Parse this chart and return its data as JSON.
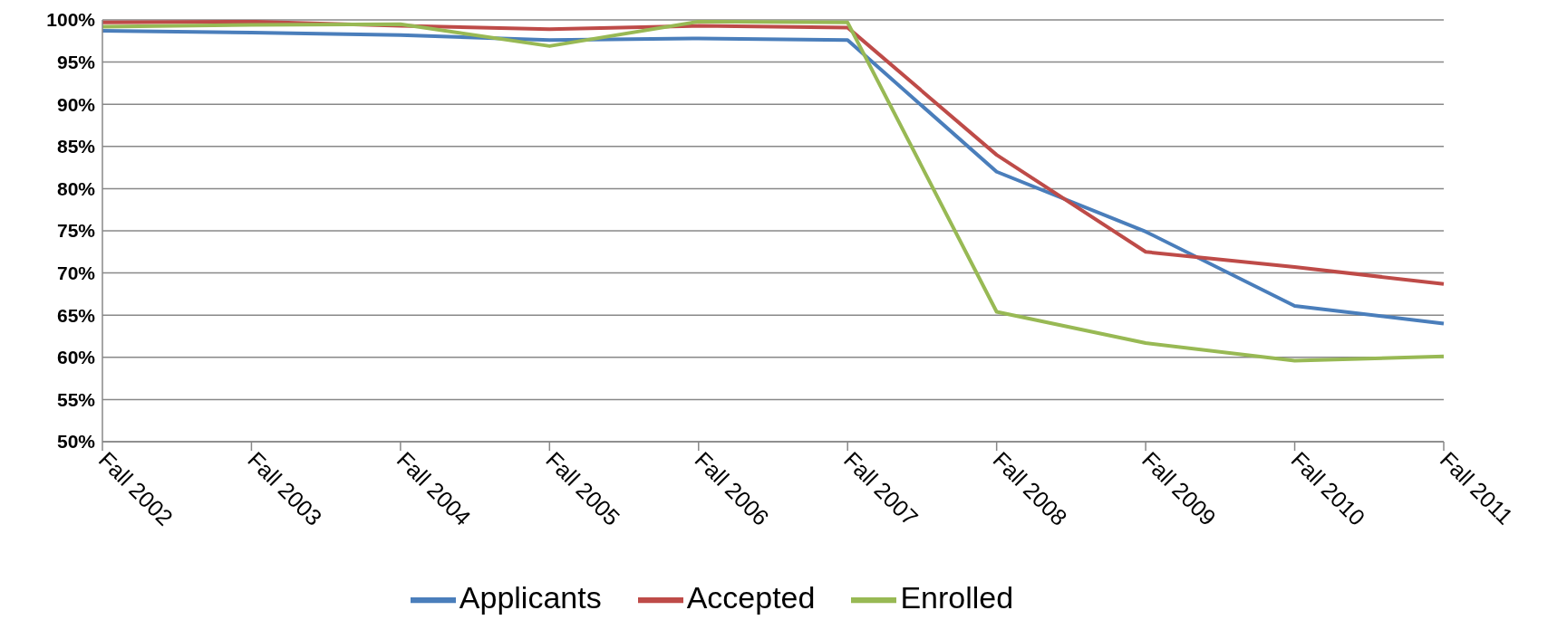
{
  "chart_data": {
    "type": "line",
    "categories": [
      "Fall 2002",
      "Fall 2003",
      "Fall 2004",
      "Fall 2005",
      "Fall 2006",
      "Fall 2007",
      "Fall 2008",
      "Fall 2009",
      "Fall 2010",
      "Fall 2011"
    ],
    "series": [
      {
        "name": "Applicants",
        "color": "#4a7ebb",
        "values": [
          98.7,
          98.5,
          98.2,
          97.6,
          97.8,
          97.6,
          82.0,
          74.9,
          66.1,
          64.0
        ]
      },
      {
        "name": "Accepted",
        "color": "#be4b48",
        "values": [
          99.7,
          99.8,
          99.3,
          98.9,
          99.3,
          99.1,
          84.0,
          72.5,
          70.7,
          68.7
        ]
      },
      {
        "name": "Enrolled",
        "color": "#98b954",
        "values": [
          99.2,
          99.4,
          99.5,
          96.9,
          99.8,
          99.7,
          65.4,
          61.7,
          59.6,
          60.1
        ]
      }
    ],
    "ylim": [
      50,
      100
    ],
    "yticks": [
      {
        "value": 50,
        "label": "50%"
      },
      {
        "value": 55,
        "label": "55%"
      },
      {
        "value": 60,
        "label": "60%"
      },
      {
        "value": 65,
        "label": "65%"
      },
      {
        "value": 70,
        "label": "70%"
      },
      {
        "value": 75,
        "label": "75%"
      },
      {
        "value": 80,
        "label": "80%"
      },
      {
        "value": 85,
        "label": "85%"
      },
      {
        "value": 90,
        "label": "90%"
      },
      {
        "value": 95,
        "label": "95%"
      },
      {
        "value": 100,
        "label": "100%"
      }
    ],
    "grid": "y",
    "legend": "bottom",
    "marker": "none",
    "line_style": "solid"
  }
}
